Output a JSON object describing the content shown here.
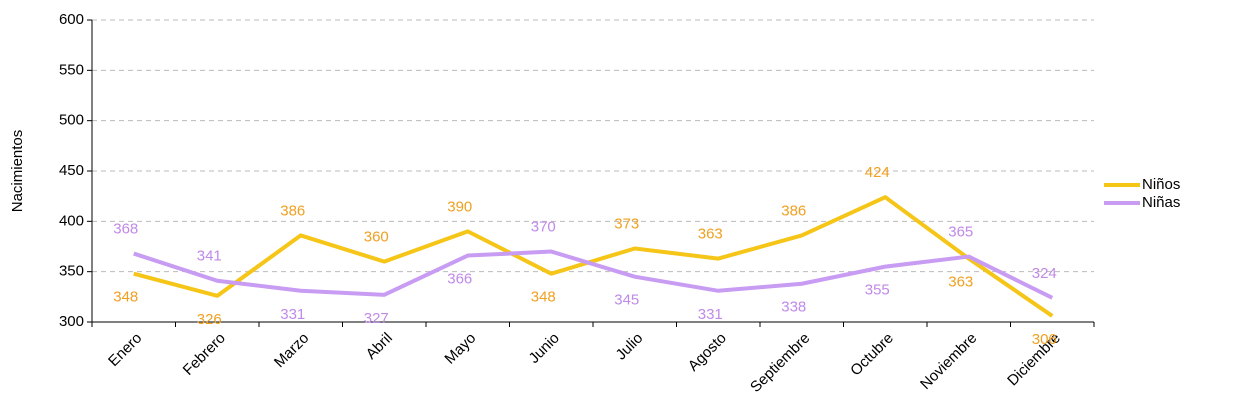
{
  "chart_data": {
    "type": "line",
    "y_label": "Nacimientos",
    "categories": [
      "Enero",
      "Febrero",
      "Marzo",
      "Abril",
      "Mayo",
      "Junio",
      "Julio",
      "Agosto",
      "Septiembre",
      "Octubre",
      "Noviembre",
      "Diciembre"
    ],
    "series": [
      {
        "name": "Niños",
        "color": "#f5c518",
        "label_color": "#f0a020",
        "values": [
          348,
          326,
          386,
          360,
          390,
          348,
          373,
          363,
          386,
          424,
          363,
          306
        ]
      },
      {
        "name": "Niñas",
        "color": "#c79cf2",
        "label_color": "#c08ae8",
        "values": [
          368,
          341,
          331,
          327,
          366,
          370,
          345,
          331,
          338,
          355,
          365,
          324
        ]
      }
    ],
    "ylim": [
      300,
      600
    ],
    "yticks": [
      300,
      350,
      400,
      450,
      500,
      550,
      600
    ],
    "grid": true,
    "legend": "right"
  }
}
